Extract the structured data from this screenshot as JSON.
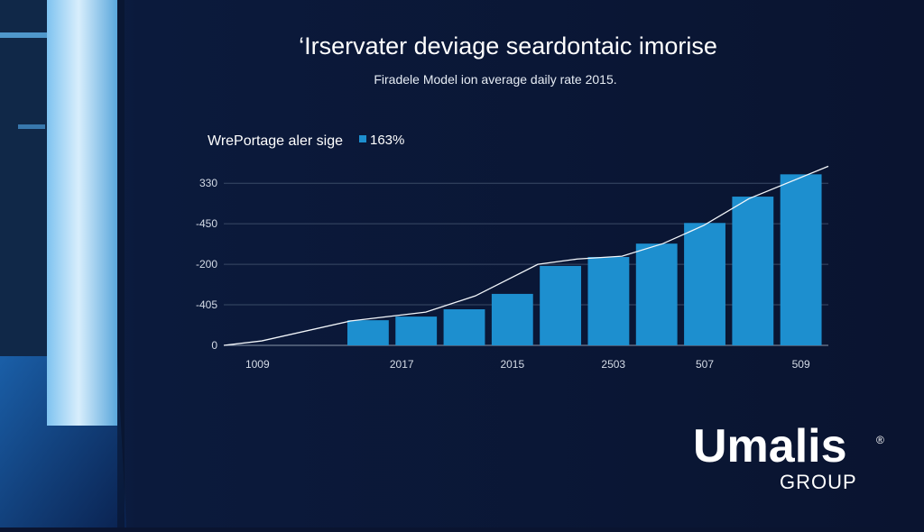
{
  "chart_data": {
    "type": "bar",
    "title": "‘Irservater deviage seardontaic imorise",
    "subtitle": "Firadele Model ion average daily rate 2015.",
    "legend_title": "WrePortage aler sige",
    "series": [
      {
        "name": "163%",
        "type": "bar",
        "color": "#1d8fcf",
        "x": [
          3,
          4,
          5,
          6,
          7,
          8,
          9,
          10,
          11,
          12
        ],
        "values": [
          0.62,
          0.71,
          0.89,
          1.27,
          1.96,
          2.18,
          2.51,
          3.02,
          3.67,
          4.22
        ]
      },
      {
        "type": "line",
        "color": "#f2f6fa",
        "x": [
          0,
          0.79,
          2.63,
          4.2,
          5.23,
          6.53,
          7.35,
          8.28,
          9.13,
          9.98,
          10.92,
          12.57
        ],
        "values": [
          0,
          0.11,
          0.6,
          0.82,
          1.22,
          2.0,
          2.13,
          2.2,
          2.51,
          2.96,
          3.62,
          4.42
        ]
      }
    ],
    "xlim": [
      0,
      12.57
    ],
    "xticks": [
      {
        "value": 0.7,
        "label": "1009"
      },
      {
        "value": 3.7,
        "label": "2017"
      },
      {
        "value": 6,
        "label": "2015"
      },
      {
        "value": 8.1,
        "label": "2503"
      },
      {
        "value": 10,
        "label": "507"
      },
      {
        "value": 12,
        "label": "509"
      }
    ],
    "ylim": [
      0,
      4.45
    ],
    "yticks": [
      {
        "value": 0,
        "label": "0"
      },
      {
        "value": 1,
        "label": "-405"
      },
      {
        "value": 2,
        "label": "-200"
      },
      {
        "value": 3,
        "label": "-450"
      },
      {
        "value": 4,
        "label": "330"
      }
    ],
    "grid": true
  },
  "logo": {
    "name": "Umalis",
    "mark": "®",
    "sub": "GROUP"
  }
}
